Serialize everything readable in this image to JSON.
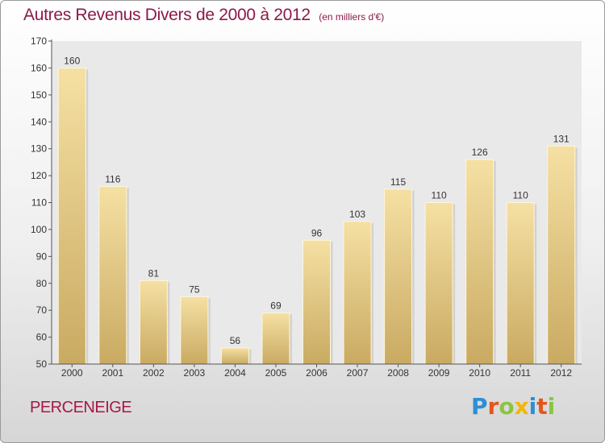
{
  "chart_data": {
    "type": "bar",
    "title": "Autres Revenus Divers de 2000 à 2012",
    "subtitle": "(en milliers d'€)",
    "categories": [
      "2000",
      "2001",
      "2002",
      "2003",
      "2004",
      "2005",
      "2006",
      "2007",
      "2008",
      "2009",
      "2010",
      "2011",
      "2012"
    ],
    "values": [
      160,
      116,
      81,
      75,
      56,
      69,
      96,
      103,
      115,
      110,
      126,
      110,
      131
    ],
    "data_labels": [
      "160",
      "116",
      "81",
      "75",
      "56",
      "69",
      "96",
      "103",
      "115",
      "110",
      "126",
      "110",
      "131"
    ],
    "y_ticks": [
      50,
      60,
      70,
      80,
      90,
      100,
      110,
      120,
      130,
      140,
      150,
      160,
      170
    ],
    "ylim": [
      50,
      170
    ],
    "grid": false,
    "colors": {
      "bar_top": "#f5e0a3",
      "bar_bottom": "#c9aa62",
      "title": "#8b1a4a"
    }
  },
  "footer": {
    "commune": "PERCENEIGE",
    "logo_letters": [
      {
        "ch": "P",
        "color": "#2b8fd6"
      },
      {
        "ch": "r",
        "color": "#e4561b"
      },
      {
        "ch": "o",
        "color": "#8bc53f"
      },
      {
        "ch": "x",
        "color": "#f2b705"
      },
      {
        "ch": "i",
        "color": "#2b8fd6"
      },
      {
        "ch": "t",
        "color": "#e4561b"
      },
      {
        "ch": "i",
        "color": "#8bc53f"
      }
    ]
  }
}
